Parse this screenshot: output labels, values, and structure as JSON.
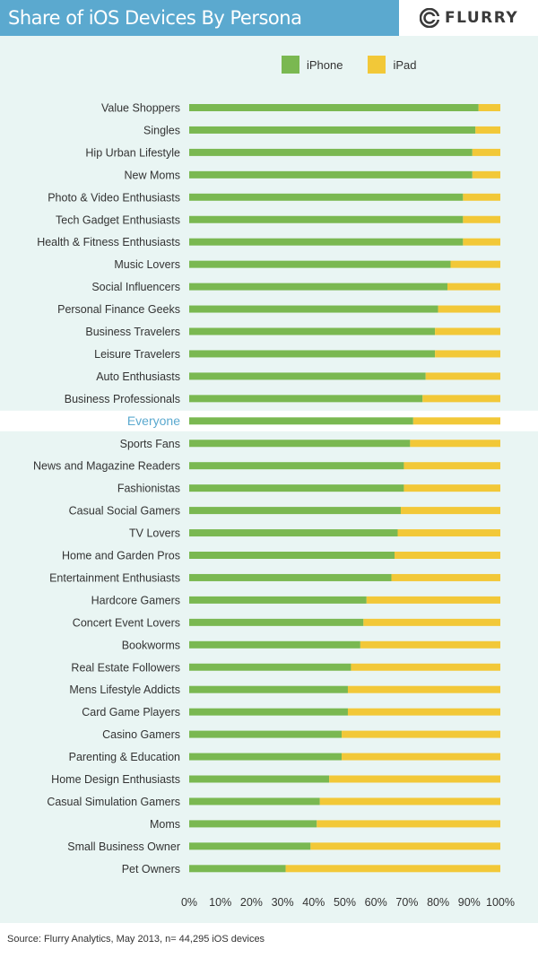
{
  "header": {
    "title": "Share of iOS Devices By Persona",
    "logo_text": "FLURRY"
  },
  "colors": {
    "iphone": "#7ab851",
    "ipad": "#f2c838",
    "highlight_label": "#5ba9cf"
  },
  "footer": {
    "source": "Source: Flurry Analytics, May 2013, n= 44,295 iOS devices"
  },
  "chart_data": {
    "type": "bar",
    "orientation": "horizontal",
    "stacked": true,
    "title": "Share of iOS Devices By Persona",
    "xlim": [
      0,
      100
    ],
    "x_ticks": [
      "0%",
      "10%",
      "20%",
      "30%",
      "40%",
      "50%",
      "60%",
      "70%",
      "80%",
      "90%",
      "100%"
    ],
    "legend": [
      "iPhone",
      "iPad"
    ],
    "legend_position": "top-right",
    "highlight": "Everyone",
    "categories": [
      "Value Shoppers",
      "Singles",
      "Hip Urban Lifestyle",
      "New Moms",
      "Photo & Video Enthusiasts",
      "Tech Gadget Enthusiasts",
      "Health & Fitness Enthusiasts",
      "Music Lovers",
      "Social Influencers",
      "Personal Finance Geeks",
      "Business Travelers",
      "Leisure Travelers",
      "Auto Enthusiasts",
      "Business Professionals",
      "Everyone",
      "Sports Fans",
      "News and Magazine Readers",
      "Fashionistas",
      "Casual Social Gamers",
      "TV Lovers",
      "Home and Garden Pros",
      "Entertainment Enthusiasts",
      "Hardcore Gamers",
      "Concert Event Lovers",
      "Bookworms",
      "Real Estate Followers",
      "Mens Lifestyle Addicts",
      "Card Game Players",
      "Casino Gamers",
      "Parenting & Education",
      "Home Design Enthusiasts",
      "Casual Simulation Gamers",
      "Moms",
      "Small Business Owner",
      "Pet Owners"
    ],
    "series": [
      {
        "name": "iPhone",
        "values": [
          93,
          92,
          91,
          91,
          88,
          88,
          88,
          84,
          83,
          80,
          79,
          79,
          76,
          75,
          72,
          71,
          69,
          69,
          68,
          67,
          66,
          65,
          57,
          56,
          55,
          52,
          51,
          51,
          49,
          49,
          45,
          42,
          41,
          39,
          31
        ]
      },
      {
        "name": "iPad",
        "values": [
          7,
          8,
          9,
          9,
          12,
          12,
          12,
          16,
          17,
          20,
          21,
          21,
          24,
          25,
          28,
          29,
          31,
          31,
          32,
          33,
          34,
          35,
          43,
          44,
          45,
          48,
          49,
          49,
          51,
          51,
          55,
          58,
          59,
          61,
          69
        ]
      }
    ]
  }
}
